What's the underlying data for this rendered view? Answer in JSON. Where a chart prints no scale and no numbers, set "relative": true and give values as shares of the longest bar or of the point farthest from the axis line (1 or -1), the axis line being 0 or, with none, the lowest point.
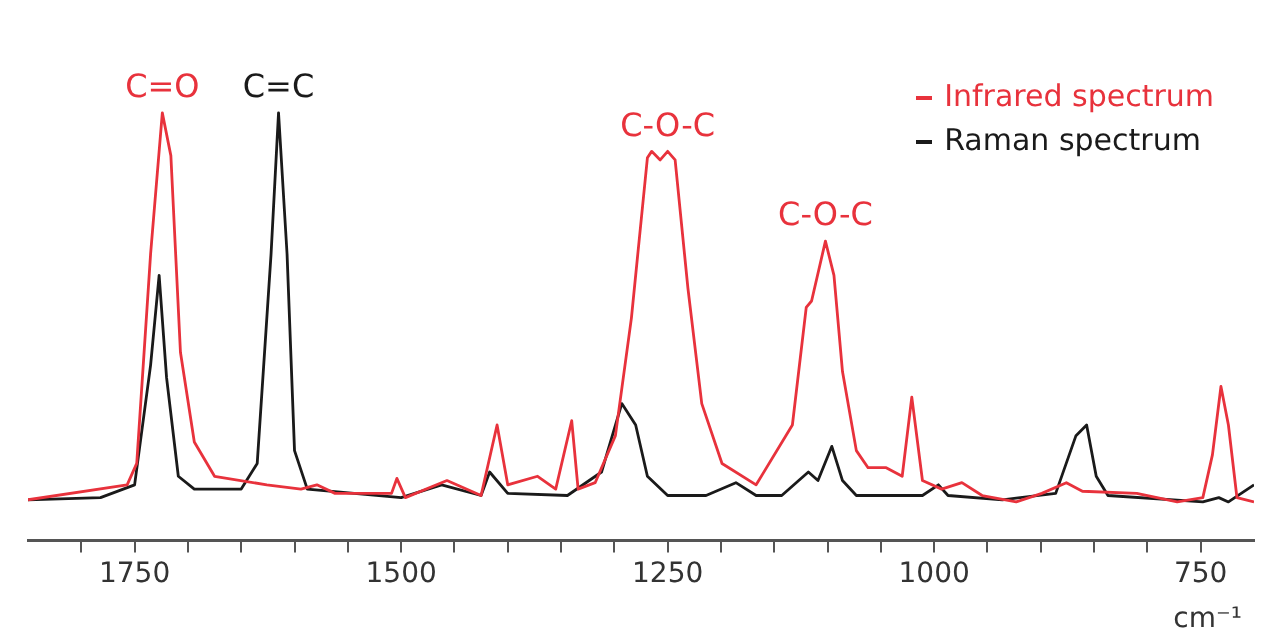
{
  "chart_data": {
    "type": "line",
    "relative": true,
    "xlabel": "cm⁻¹",
    "xlim": [
      1850,
      700
    ],
    "xticks": [
      {
        "value": 1800,
        "label": null
      },
      1750,
      {
        "value": 1700,
        "label": null
      },
      {
        "value": 1650,
        "label": null
      },
      {
        "value": 1600,
        "label": null
      },
      {
        "value": 1550,
        "label": null
      },
      1500,
      {
        "value": 1450,
        "label": null
      },
      {
        "value": 1400,
        "label": null
      },
      {
        "value": 1350,
        "label": null
      },
      {
        "value": 1300,
        "label": null
      },
      1250,
      {
        "value": 1200,
        "label": null
      },
      {
        "value": 1150,
        "label": null
      },
      {
        "value": 1100,
        "label": null
      },
      {
        "value": 1050,
        "label": null
      },
      1000,
      {
        "value": 950,
        "label": null
      },
      {
        "value": 900,
        "label": null
      },
      {
        "value": 850,
        "label": null
      },
      {
        "value": 800,
        "label": null
      },
      750
    ],
    "grid": false,
    "legend": "top right",
    "marker": "none",
    "line_style": "solid",
    "series": [
      {
        "name": "Infrared spectrum",
        "color": "#e8323c",
        "x": [
          1850,
          1757,
          1748,
          1735,
          1724,
          1716,
          1707,
          1694,
          1675,
          1626,
          1594,
          1579,
          1562,
          1509,
          1504,
          1496,
          1457,
          1425,
          1410,
          1400,
          1372,
          1355,
          1340,
          1334,
          1318,
          1299,
          1284,
          1269,
          1265,
          1257,
          1250,
          1243,
          1231,
          1218,
          1199,
          1167,
          1133,
          1120,
          1115,
          1102,
          1094,
          1086,
          1073,
          1062,
          1045,
          1030,
          1021,
          1011,
          993,
          974,
          955,
          923,
          899,
          876,
          861,
          810,
          772,
          748,
          739,
          731,
          724,
          716,
          700
        ],
        "values": [
          0.095,
          0.13,
          0.18,
          0.67,
          1.0,
          0.9,
          0.44,
          0.23,
          0.15,
          0.13,
          0.12,
          0.13,
          0.11,
          0.11,
          0.145,
          0.1,
          0.14,
          0.105,
          0.27,
          0.13,
          0.15,
          0.12,
          0.28,
          0.12,
          0.135,
          0.245,
          0.52,
          0.895,
          0.91,
          0.89,
          0.91,
          0.89,
          0.59,
          0.32,
          0.18,
          0.13,
          0.27,
          0.545,
          0.56,
          0.7,
          0.62,
          0.395,
          0.21,
          0.17,
          0.17,
          0.15,
          0.335,
          0.14,
          0.12,
          0.135,
          0.105,
          0.09,
          0.11,
          0.135,
          0.115,
          0.11,
          0.09,
          0.1,
          0.2,
          0.36,
          0.27,
          0.1,
          0.09
        ]
      },
      {
        "name": "Raman spectrum",
        "color": "#1a1a1a",
        "x": [
          1850,
          1782,
          1750,
          1735,
          1727,
          1720,
          1709,
          1694,
          1650,
          1635,
          1622,
          1615,
          1607,
          1600,
          1588,
          1500,
          1462,
          1425,
          1417,
          1400,
          1344,
          1312,
          1293,
          1280,
          1269,
          1250,
          1214,
          1186,
          1167,
          1143,
          1118,
          1109,
          1096,
          1086,
          1073,
          1011,
          996,
          987,
          936,
          886,
          867,
          857,
          848,
          837,
          748,
          733,
          724,
          700
        ],
        "values": [
          0.095,
          0.1,
          0.13,
          0.41,
          0.62,
          0.38,
          0.15,
          0.12,
          0.12,
          0.18,
          0.67,
          1.0,
          0.67,
          0.21,
          0.12,
          0.1,
          0.13,
          0.105,
          0.16,
          0.11,
          0.105,
          0.16,
          0.32,
          0.27,
          0.15,
          0.105,
          0.105,
          0.135,
          0.105,
          0.105,
          0.16,
          0.14,
          0.22,
          0.14,
          0.105,
          0.105,
          0.13,
          0.105,
          0.095,
          0.11,
          0.245,
          0.27,
          0.15,
          0.105,
          0.09,
          0.1,
          0.09,
          0.13
        ]
      }
    ],
    "annotations": [
      {
        "text": "C=O",
        "x": 1724,
        "y": 1.0
      },
      {
        "text": "C=C",
        "x": 1615,
        "y": 1.0
      },
      {
        "text": "C-O-C",
        "x": 1250,
        "y": 0.91
      },
      {
        "text": "C-O-C",
        "x": 1102,
        "y": 0.7
      }
    ]
  }
}
